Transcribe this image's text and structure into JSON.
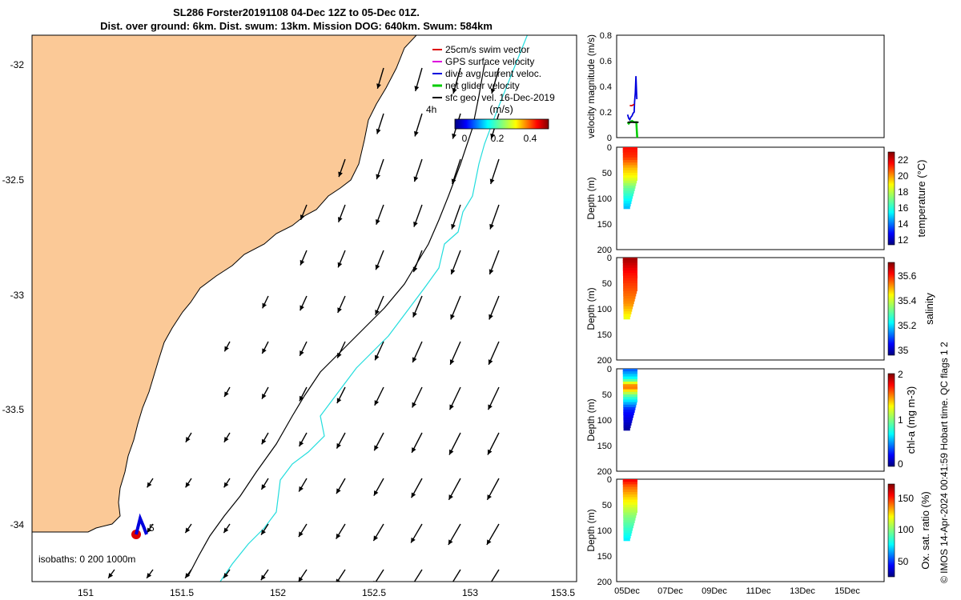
{
  "title": {
    "line1": "SL286 Forster20191108 04-Dec 12Z to 05-Dec 01Z.",
    "line2": "Dist. over ground: 6km. Dist. swum: 13km. Mission DOG: 640km. Swum: 584km"
  },
  "credit": "© IMOS 14-Apr-2024 00:41:59 Hobart time. QC flags 1  2",
  "colors": {
    "land": "#fbc997",
    "coast": "#000000",
    "isobath_200": "#000000",
    "isobath_1000": "#22dddd",
    "swim_vector": "#dd0000",
    "gps_velocity": "#dd00dd",
    "dive_current": "#0000dd",
    "net_glider": "#00cc00",
    "geo_vel": "#000000"
  },
  "map": {
    "xticks": [
      "151",
      "151.5",
      "152",
      "152.5",
      "153",
      "153.5"
    ],
    "yticks": [
      "-32",
      "-32.5",
      "-33",
      "-33.5",
      "-34"
    ],
    "legend": [
      "25cm/s swim vector",
      "GPS surface velocity",
      "dive avg current veloc.",
      "net glider velocity",
      "sfc geo. vel. 16-Dec-2019"
    ],
    "legend_label_4h": "4h",
    "colorbar_unit": "(m/s)",
    "colorbar_ticks": [
      "0",
      "0.2",
      "0.4"
    ],
    "isobath_text": "isobaths: 0   200  1000m",
    "track_label": "5"
  },
  "chart_data": [
    {
      "type": "line",
      "panel": "velocity",
      "ylabel": "velocity magnitude (m/s)",
      "ylim": [
        0,
        0.8
      ],
      "yticks": [
        "0",
        "0.2",
        "0.4",
        "0.6",
        "0.8"
      ],
      "series": [
        {
          "name": "dive avg current veloc.",
          "x": [
            5.0,
            5.05,
            5.1,
            5.15,
            5.2,
            5.25,
            5.3,
            5.32,
            5.35,
            5.38,
            5.42
          ],
          "values": [
            0.18,
            0.15,
            0.14,
            0.16,
            0.17,
            0.19,
            0.2,
            0.28,
            0.35,
            0.48,
            0.3
          ]
        },
        {
          "name": "net glider velocity",
          "x": [
            5.0,
            5.05,
            5.1,
            5.2,
            5.3,
            5.4,
            5.42,
            5.44
          ],
          "values": [
            0.12,
            0.11,
            0.12,
            0.13,
            0.12,
            0.12,
            0.05,
            0.0
          ]
        },
        {
          "name": "25cm/s swim vector",
          "x": [
            5.1,
            5.2,
            5.3
          ],
          "values": [
            0.25,
            0.25,
            0.26
          ]
        },
        {
          "name": "sfc geo. vel. 16-Dec-2019",
          "x": [
            5.0,
            5.1,
            5.2,
            5.3,
            5.4,
            5.5
          ],
          "values": [
            0.12,
            0.12,
            0.12,
            0.12,
            0.12,
            0.12
          ]
        }
      ]
    },
    {
      "type": "heatmap",
      "panel": "temperature",
      "ylabel": "Depth (m)",
      "clabel": "temperature (°C)",
      "ylim": [
        200,
        0
      ],
      "yticks": [
        "0",
        "50",
        "100",
        "150",
        "200"
      ],
      "colorbar_ticks": [
        "12",
        "14",
        "16",
        "18",
        "20",
        "22"
      ],
      "crange": [
        11.5,
        23
      ],
      "profile": [
        [
          0,
          21.5
        ],
        [
          20,
          21
        ],
        [
          40,
          19.5
        ],
        [
          60,
          18.5
        ],
        [
          80,
          17
        ],
        [
          100,
          16
        ],
        [
          120,
          15
        ]
      ]
    },
    {
      "type": "heatmap",
      "panel": "salinity",
      "ylabel": "Depth (m)",
      "clabel": "salinity",
      "ylim": [
        200,
        0
      ],
      "yticks": [
        "0",
        "50",
        "100",
        "150",
        "200"
      ],
      "colorbar_ticks": [
        "35",
        "35.2",
        "35.4",
        "35.6"
      ],
      "crange": [
        34.95,
        35.7
      ],
      "profile": [
        [
          0,
          35.68
        ],
        [
          30,
          35.6
        ],
        [
          60,
          35.55
        ],
        [
          90,
          35.5
        ],
        [
          120,
          35.4
        ]
      ]
    },
    {
      "type": "heatmap",
      "panel": "chl-a",
      "ylabel": "Depth (m)",
      "clabel": "chl-a (mg m-3)",
      "ylim": [
        200,
        0
      ],
      "yticks": [
        "0",
        "50",
        "100",
        "150",
        "200"
      ],
      "colorbar_ticks": [
        "0",
        "1",
        "2"
      ],
      "crange": [
        0,
        2
      ],
      "profile": [
        [
          0,
          0.4
        ],
        [
          20,
          0.8
        ],
        [
          35,
          1.6
        ],
        [
          50,
          1.0
        ],
        [
          80,
          0.3
        ],
        [
          120,
          0.05
        ]
      ]
    },
    {
      "type": "heatmap",
      "panel": "oxygen",
      "ylabel": "Depth (m)",
      "clabel": "Ox. sat. ratio (%)",
      "ylim": [
        200,
        0
      ],
      "yticks": [
        "0",
        "50",
        "100",
        "150",
        "200"
      ],
      "colorbar_ticks": [
        "50",
        "100",
        "150"
      ],
      "crange": [
        20,
        175
      ],
      "profile": [
        [
          0,
          160
        ],
        [
          15,
          140
        ],
        [
          40,
          120
        ],
        [
          70,
          100
        ],
        [
          100,
          85
        ],
        [
          120,
          75
        ]
      ]
    }
  ],
  "time_axis": {
    "ticks": [
      "05Dec",
      "07Dec",
      "09Dec",
      "11Dec",
      "13Dec",
      "15Dec"
    ],
    "range_days": [
      4.5,
      16.7
    ]
  }
}
